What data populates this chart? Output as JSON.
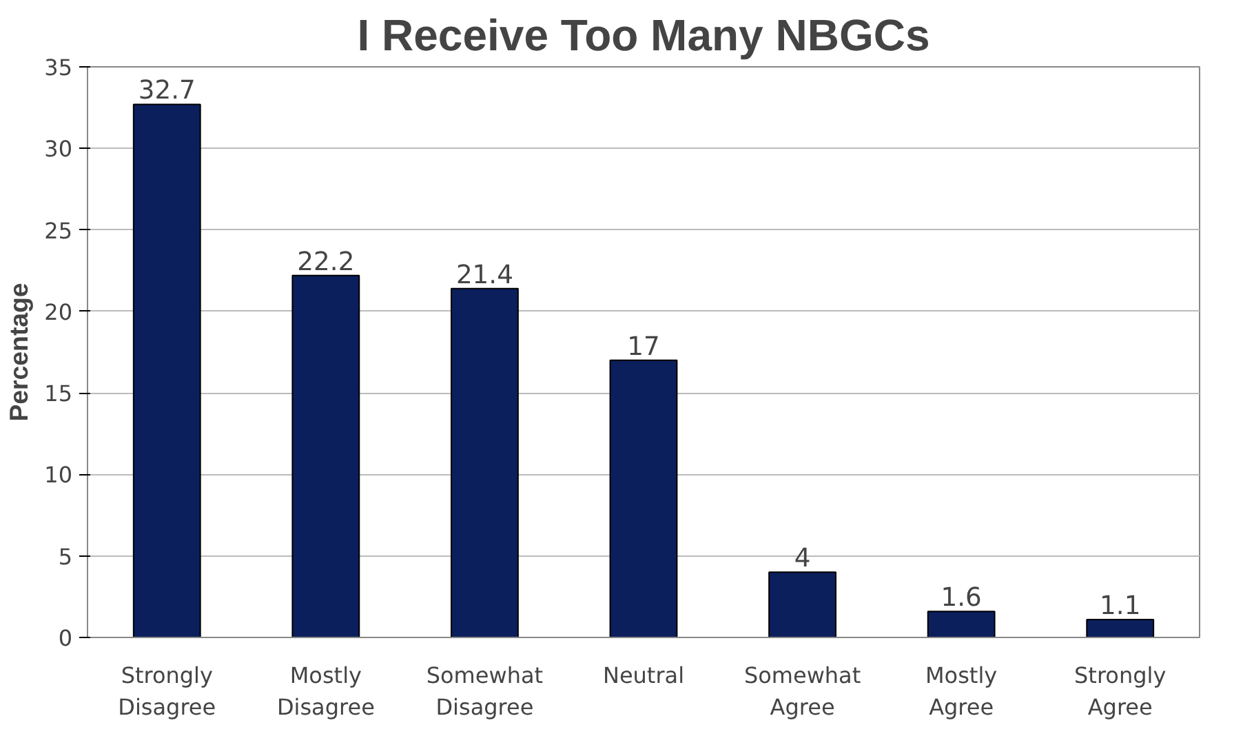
{
  "chart_data": {
    "type": "bar",
    "title": "I Receive Too Many NBGCs",
    "ylabel": "Percentage",
    "categories": [
      "Strongly Disagree",
      "Mostly Disagree",
      "Somewhat Disagree",
      "Neutral",
      "Somewhat Agree",
      "Mostly Agree",
      "Strongly Agree"
    ],
    "values": [
      32.7,
      22.2,
      21.4,
      17,
      4,
      1.6,
      1.1
    ],
    "color": "#0b1f5c",
    "ylim": [
      0,
      35
    ],
    "yticks": [
      0,
      5,
      10,
      15,
      20,
      25,
      30,
      35
    ],
    "grid": "y",
    "data_labels": true
  }
}
